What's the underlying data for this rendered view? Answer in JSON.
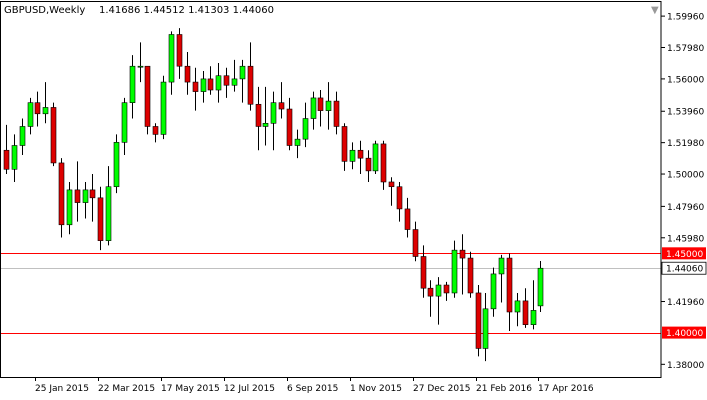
{
  "header": {
    "symbol": "GBPUSD,Weekly",
    "ohlc_text": "1.41686 1.44512 1.41303 1.44060"
  },
  "chart_data": {
    "type": "candlestick",
    "symbol": "GBPUSD",
    "timeframe": "Weekly",
    "ylim": [
      1.372,
      1.6085
    ],
    "y_ticks": [
      "1.59960",
      "1.57980",
      "1.56000",
      "1.53960",
      "1.51980",
      "1.50000",
      "1.47960",
      "1.45980",
      "1.41960",
      "1.38000"
    ],
    "x_labels": [
      "25 Jan 2015",
      "22 Mar 2015",
      "17 May 2015",
      "12 Jul 2015",
      "6 Sep 2015",
      "1 Nov 2015",
      "27 Dec 2015",
      "21 Feb 2016",
      "17 Apr 2016"
    ],
    "x_label_bar_index": [
      4,
      12,
      20,
      28,
      36,
      44,
      52,
      60,
      68
    ],
    "horizontal_lines": [
      {
        "value": 1.45,
        "label": "1.45000",
        "color": "#ff0000"
      },
      {
        "value": 1.4,
        "label": "1.40000",
        "color": "#ff0000"
      }
    ],
    "current_price": {
      "value": 1.4406,
      "label": "1.44060",
      "line_color": "#c0c0c0"
    },
    "candles": [
      [
        1.515,
        1.531,
        1.5,
        1.503
      ],
      [
        1.503,
        1.525,
        1.495,
        1.518
      ],
      [
        1.518,
        1.535,
        1.512,
        1.53
      ],
      [
        1.53,
        1.548,
        1.525,
        1.545
      ],
      [
        1.545,
        1.552,
        1.53,
        1.538
      ],
      [
        1.538,
        1.558,
        1.532,
        1.542
      ],
      [
        1.542,
        1.545,
        1.505,
        1.507
      ],
      [
        1.507,
        1.51,
        1.46,
        1.468
      ],
      [
        1.468,
        1.495,
        1.462,
        1.49
      ],
      [
        1.49,
        1.508,
        1.47,
        1.482
      ],
      [
        1.482,
        1.495,
        1.472,
        1.49
      ],
      [
        1.49,
        1.5,
        1.47,
        1.485
      ],
      [
        1.485,
        1.492,
        1.452,
        1.458
      ],
      [
        1.458,
        1.505,
        1.455,
        1.492
      ],
      [
        1.492,
        1.525,
        1.488,
        1.52
      ],
      [
        1.52,
        1.548,
        1.512,
        1.545
      ],
      [
        1.545,
        1.575,
        1.535,
        1.568
      ],
      [
        1.568,
        1.583,
        1.558,
        1.568
      ],
      [
        1.568,
        1.568,
        1.525,
        1.53
      ],
      [
        1.53,
        1.532,
        1.52,
        1.525
      ],
      [
        1.525,
        1.562,
        1.522,
        1.558
      ],
      [
        1.558,
        1.59,
        1.55,
        1.588
      ],
      [
        1.588,
        1.592,
        1.56,
        1.568
      ],
      [
        1.568,
        1.577,
        1.55,
        1.558
      ],
      [
        1.558,
        1.567,
        1.54,
        1.552
      ],
      [
        1.552,
        1.565,
        1.545,
        1.56
      ],
      [
        1.56,
        1.568,
        1.55,
        1.553
      ],
      [
        1.553,
        1.57,
        1.545,
        1.562
      ],
      [
        1.562,
        1.567,
        1.548,
        1.556
      ],
      [
        1.556,
        1.572,
        1.552,
        1.56
      ],
      [
        1.56,
        1.572,
        1.545,
        1.568
      ],
      [
        1.568,
        1.583,
        1.54,
        1.544
      ],
      [
        1.544,
        1.555,
        1.515,
        1.53
      ],
      [
        1.53,
        1.555,
        1.518,
        1.532
      ],
      [
        1.532,
        1.552,
        1.515,
        1.545
      ],
      [
        1.545,
        1.558,
        1.535,
        1.541
      ],
      [
        1.541,
        1.548,
        1.515,
        1.518
      ],
      [
        1.518,
        1.528,
        1.51,
        1.522
      ],
      [
        1.522,
        1.545,
        1.517,
        1.535
      ],
      [
        1.535,
        1.552,
        1.528,
        1.548
      ],
      [
        1.548,
        1.553,
        1.53,
        1.54
      ],
      [
        1.54,
        1.558,
        1.528,
        1.546
      ],
      [
        1.546,
        1.552,
        1.525,
        1.53
      ],
      [
        1.53,
        1.532,
        1.502,
        1.508
      ],
      [
        1.508,
        1.52,
        1.503,
        1.515
      ],
      [
        1.515,
        1.521,
        1.5,
        1.51
      ],
      [
        1.51,
        1.515,
        1.495,
        1.502
      ],
      [
        1.502,
        1.521,
        1.5,
        1.519
      ],
      [
        1.519,
        1.521,
        1.49,
        1.495
      ],
      [
        1.495,
        1.498,
        1.48,
        1.492
      ],
      [
        1.492,
        1.495,
        1.47,
        1.478
      ],
      [
        1.478,
        1.485,
        1.46,
        1.465
      ],
      [
        1.465,
        1.47,
        1.445,
        1.448
      ],
      [
        1.448,
        1.455,
        1.422,
        1.428
      ],
      [
        1.428,
        1.433,
        1.41,
        1.423
      ],
      [
        1.423,
        1.435,
        1.405,
        1.43
      ],
      [
        1.43,
        1.432,
        1.42,
        1.425
      ],
      [
        1.425,
        1.458,
        1.422,
        1.452
      ],
      [
        1.452,
        1.462,
        1.424,
        1.447
      ],
      [
        1.447,
        1.451,
        1.422,
        1.425
      ],
      [
        1.425,
        1.43,
        1.385,
        1.39
      ],
      [
        1.39,
        1.425,
        1.382,
        1.415
      ],
      [
        1.415,
        1.441,
        1.41,
        1.437
      ],
      [
        1.437,
        1.449,
        1.419,
        1.447
      ],
      [
        1.447,
        1.45,
        1.401,
        1.413
      ],
      [
        1.413,
        1.425,
        1.404,
        1.42
      ],
      [
        1.42,
        1.428,
        1.403,
        1.405
      ],
      [
        1.405,
        1.433,
        1.402,
        1.414
      ],
      [
        1.41686,
        1.44512,
        1.41303,
        1.4406
      ]
    ],
    "colors": {
      "bull": "#00ff00",
      "bear": "#dd0000",
      "wick": "#000000",
      "axis_text": "#000000",
      "price_line": "#ff0000",
      "current_line": "#c0c0c0",
      "frame": "#000000"
    }
  }
}
